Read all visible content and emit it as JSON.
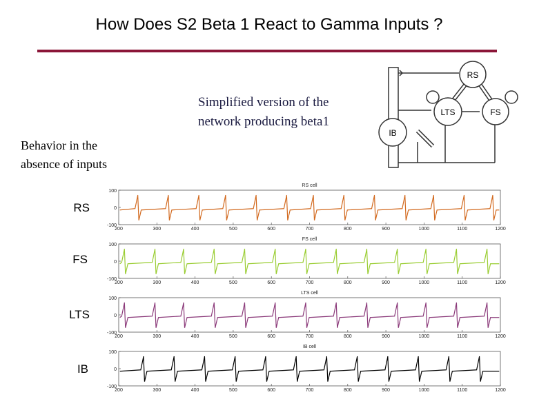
{
  "slide": {
    "title": "How Does S2 Beta 1 React to Gamma Inputs ?",
    "simplified_line1": "Simplified version of the",
    "simplified_line2": "network producing beta1",
    "behavior_line1": "Behavior in the",
    "behavior_line2": "absence of inputs",
    "accent_color": "#8b1538"
  },
  "network": {
    "nodes": [
      "RS",
      "LTS",
      "FS",
      "IB"
    ]
  },
  "row_labels": [
    "RS",
    "FS",
    "LTS",
    "IB"
  ],
  "chart_data": [
    {
      "type": "line",
      "title": "RS cell",
      "color": "#d2691e",
      "ylim": [
        -100,
        100
      ],
      "yticks": [
        "100",
        "0",
        "-100"
      ],
      "xticks": [
        "200",
        "300",
        "400",
        "500",
        "600",
        "700",
        "800",
        "900",
        "1000",
        "1100",
        "1200"
      ],
      "spike_times": [
        250,
        330,
        410,
        480,
        560,
        640,
        710,
        790,
        870,
        950,
        1025,
        1105,
        1180
      ]
    },
    {
      "type": "line",
      "title": "FS cell",
      "color": "#9acd32",
      "ylim": [
        -100,
        100
      ],
      "yticks": [
        "100",
        "0",
        "-100"
      ],
      "xticks": [
        "200",
        "300",
        "400",
        "500",
        "600",
        "700",
        "800",
        "900",
        "1000",
        "1100",
        "1200"
      ],
      "spike_times": [
        215,
        295,
        370,
        450,
        530,
        610,
        690,
        770,
        850,
        930,
        1005,
        1085,
        1165
      ]
    },
    {
      "type": "line",
      "title": "LTS cell",
      "color": "#8b3a7a",
      "ylim": [
        -100,
        100
      ],
      "yticks": [
        "100",
        "0",
        "-100"
      ],
      "xticks": [
        "200",
        "300",
        "400",
        "500",
        "600",
        "700",
        "800",
        "900",
        "1000",
        "1100",
        "1200"
      ],
      "spike_times": [
        215,
        295,
        370,
        450,
        530,
        610,
        690,
        770,
        850,
        930,
        1005,
        1085,
        1165
      ]
    },
    {
      "type": "line",
      "title": "IB cell",
      "color": "#000000",
      "ylim": [
        -100,
        100
      ],
      "yticks": [
        "100",
        "0",
        "-100"
      ],
      "xticks": [
        "200",
        "300",
        "400",
        "500",
        "600",
        "700",
        "800",
        "900",
        "1000",
        "1100",
        "1200"
      ],
      "spike_times": [
        265,
        345,
        425,
        505,
        585,
        665,
        745,
        825,
        905,
        985,
        1065,
        1145
      ]
    }
  ]
}
